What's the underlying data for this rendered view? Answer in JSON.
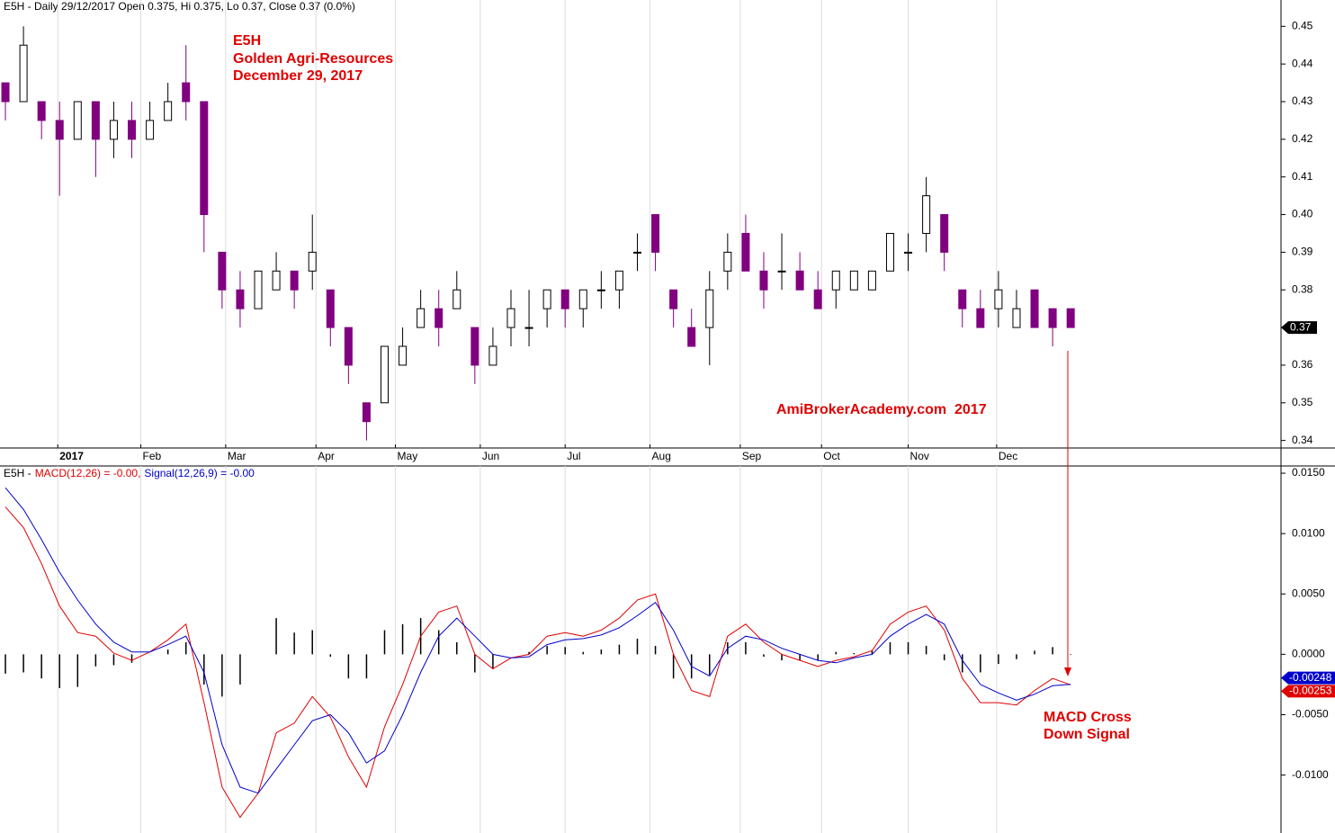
{
  "chart_data": [
    {
      "type": "candlestick",
      "title": "E5H - Daily 29/12/2017 Open 0.375, Hi 0.375, Lo 0.37, Close 0.37 (0.0%)",
      "annotations": [
        "E5H",
        "Golden Agri-Resources",
        "December 29, 2017",
        "AmiBrokerAcademy.com  2017"
      ],
      "open": [
        0.435,
        0.43,
        0.43,
        0.425,
        0.42,
        0.43,
        0.42,
        0.425,
        0.42,
        0.425,
        0.435,
        0.43,
        0.39,
        0.38,
        0.375,
        0.38,
        0.385,
        0.385,
        0.38,
        0.37,
        0.35,
        0.35,
        0.36,
        0.37,
        0.375,
        0.375,
        0.37,
        0.36,
        0.37,
        0.37,
        0.375,
        0.38,
        0.375,
        0.38,
        0.38,
        0.39,
        0.4,
        0.38,
        0.37,
        0.37,
        0.385,
        0.395,
        0.385,
        0.385,
        0.385,
        0.38,
        0.38,
        0.38,
        0.38,
        0.385,
        0.39,
        0.395,
        0.4,
        0.38,
        0.375,
        0.375,
        0.37,
        0.38,
        0.375,
        0.375
      ],
      "high": [
        0.435,
        0.45,
        0.43,
        0.43,
        0.43,
        0.43,
        0.43,
        0.43,
        0.43,
        0.435,
        0.445,
        0.43,
        0.39,
        0.385,
        0.385,
        0.39,
        0.385,
        0.4,
        0.38,
        0.37,
        0.35,
        0.365,
        0.37,
        0.38,
        0.38,
        0.385,
        0.37,
        0.37,
        0.38,
        0.38,
        0.38,
        0.38,
        0.38,
        0.385,
        0.385,
        0.395,
        0.4,
        0.38,
        0.375,
        0.385,
        0.395,
        0.4,
        0.39,
        0.395,
        0.39,
        0.385,
        0.385,
        0.385,
        0.385,
        0.395,
        0.395,
        0.41,
        0.4,
        0.38,
        0.38,
        0.385,
        0.38,
        0.38,
        0.375,
        0.375
      ],
      "low": [
        0.425,
        0.43,
        0.42,
        0.405,
        0.42,
        0.41,
        0.415,
        0.415,
        0.42,
        0.425,
        0.425,
        0.39,
        0.375,
        0.37,
        0.375,
        0.38,
        0.375,
        0.38,
        0.365,
        0.355,
        0.34,
        0.35,
        0.36,
        0.37,
        0.365,
        0.375,
        0.355,
        0.36,
        0.365,
        0.365,
        0.37,
        0.37,
        0.37,
        0.375,
        0.375,
        0.385,
        0.385,
        0.37,
        0.365,
        0.36,
        0.38,
        0.385,
        0.375,
        0.38,
        0.38,
        0.375,
        0.375,
        0.38,
        0.38,
        0.385,
        0.385,
        0.39,
        0.385,
        0.37,
        0.37,
        0.37,
        0.37,
        0.37,
        0.365,
        0.37
      ],
      "close": [
        0.43,
        0.445,
        0.425,
        0.42,
        0.43,
        0.42,
        0.425,
        0.42,
        0.425,
        0.43,
        0.43,
        0.4,
        0.38,
        0.375,
        0.385,
        0.385,
        0.38,
        0.39,
        0.37,
        0.36,
        0.345,
        0.365,
        0.365,
        0.375,
        0.37,
        0.38,
        0.36,
        0.365,
        0.375,
        0.37,
        0.38,
        0.375,
        0.38,
        0.38,
        0.385,
        0.39,
        0.39,
        0.375,
        0.365,
        0.38,
        0.39,
        0.385,
        0.38,
        0.385,
        0.38,
        0.375,
        0.385,
        0.385,
        0.385,
        0.395,
        0.39,
        0.405,
        0.39,
        0.375,
        0.37,
        0.38,
        0.375,
        0.37,
        0.37,
        0.37
      ],
      "up_color": "#000000",
      "down_color": "#800080",
      "last_label": "0.37",
      "xlim": [
        -0.3,
        70.65
      ],
      "xticks": [
        {
          "value": 2.9,
          "label": "2017"
        },
        {
          "value": 7.5,
          "label": "Feb"
        },
        {
          "value": 12.2,
          "label": "Mar"
        },
        {
          "value": 17.2,
          "label": "Apr"
        },
        {
          "value": 21.6,
          "label": "May"
        },
        {
          "value": 26.3,
          "label": "Jun"
        },
        {
          "value": 31.0,
          "label": "Jul"
        },
        {
          "value": 35.7,
          "label": "Aug"
        },
        {
          "value": 40.7,
          "label": "Sep"
        },
        {
          "value": 45.2,
          "label": "Oct"
        },
        {
          "value": 50.0,
          "label": "Nov"
        },
        {
          "value": 54.9,
          "label": "Dec"
        }
      ],
      "ylim": [
        0.338,
        0.457
      ],
      "yticks": [
        0.34,
        0.35,
        0.36,
        0.37,
        0.38,
        0.39,
        {
          "value": 0.4,
          "label": "0.40"
        },
        0.41,
        0.42,
        0.43,
        0.44,
        0.45
      ],
      "grid": true
    },
    {
      "type": "line",
      "title": "E5H -",
      "annotations": [
        "MACD Cross",
        "Down Signal"
      ],
      "series": [
        {
          "name": "MACD(12,26) = -0.00,",
          "color": "#e00000",
          "last_label": "-0.00253",
          "values": [
            0.0122,
            0.0105,
            0.0075,
            0.004,
            0.0018,
            0.0015,
            0.0001,
            -0.0005,
            0.0002,
            0.0012,
            0.0025,
            -0.004,
            -0.011,
            -0.0135,
            -0.0115,
            -0.0065,
            -0.0057,
            -0.0035,
            -0.0052,
            -0.0085,
            -0.011,
            -0.006,
            -0.0025,
            0.0015,
            0.0035,
            0.004,
            0.0,
            -0.0012,
            -0.0003,
            0.0,
            0.0015,
            0.0018,
            0.0015,
            0.002,
            0.003,
            0.0045,
            0.005,
            0.0,
            -0.003,
            -0.0035,
            0.0015,
            0.0025,
            0.001,
            0.0,
            -0.0005,
            -0.001,
            -0.0005,
            -0.0002,
            0.0003,
            0.0025,
            0.0035,
            0.004,
            0.002,
            -0.002,
            -0.004,
            -0.004,
            -0.0042,
            -0.003,
            -0.002,
            -0.00253
          ]
        },
        {
          "name": "Signal(12,26,9) = -0.00",
          "color": "#0000cc",
          "last_label": "-0.00248",
          "values": [
            0.0138,
            0.012,
            0.0095,
            0.0068,
            0.0045,
            0.0025,
            0.001,
            0.0002,
            0.0002,
            0.0008,
            0.0015,
            -0.0015,
            -0.0075,
            -0.011,
            -0.0115,
            -0.0095,
            -0.0075,
            -0.0055,
            -0.005,
            -0.0065,
            -0.009,
            -0.008,
            -0.005,
            -0.0015,
            0.0015,
            0.003,
            0.0015,
            0.0,
            -0.0003,
            -0.0002,
            0.0008,
            0.0012,
            0.0013,
            0.0016,
            0.0022,
            0.0032,
            0.0043,
            0.002,
            -0.001,
            -0.0018,
            0.0005,
            0.0015,
            0.0012,
            0.0005,
            0.0,
            -0.0005,
            -0.0007,
            -0.0003,
            0.0,
            0.0015,
            0.0025,
            0.0033,
            0.0025,
            -0.0005,
            -0.0025,
            -0.0032,
            -0.0038,
            -0.0033,
            -0.0026,
            -0.00248
          ]
        }
      ],
      "histogram": {
        "color": "#000000",
        "values": [
          -0.0016,
          -0.0015,
          -0.002,
          -0.0028,
          -0.0027,
          -0.001,
          -0.0009,
          -0.0007,
          0.0,
          0.0004,
          0.001,
          -0.0025,
          -0.0035,
          -0.0025,
          0.0,
          0.003,
          0.0018,
          0.002,
          -0.0002,
          -0.002,
          -0.002,
          0.002,
          0.0025,
          0.003,
          0.002,
          0.001,
          -0.0015,
          -0.0012,
          0.0,
          0.0002,
          0.0007,
          0.0006,
          0.0002,
          0.0004,
          0.0008,
          0.0013,
          0.0007,
          -0.002,
          -0.002,
          -0.0017,
          0.001,
          0.001,
          -0.0002,
          -0.0005,
          -0.0005,
          -0.0005,
          0.0002,
          0.0001,
          0.0003,
          0.001,
          0.001,
          0.0007,
          -0.0005,
          -0.0015,
          -0.0015,
          -0.0008,
          -0.0004,
          0.0003,
          0.0006,
          -5e-05
        ]
      },
      "ylim": [
        -0.0148,
        0.0156
      ],
      "yticks": [
        {
          "value": -0.01,
          "label": "-0.0100"
        },
        {
          "value": -0.005,
          "label": "-0.0050"
        },
        {
          "value": 0.0,
          "label": "0.0000"
        },
        {
          "value": 0.005,
          "label": "0.0050"
        },
        {
          "value": 0.01,
          "label": "0.0100"
        },
        {
          "value": 0.015,
          "label": "0.0150"
        }
      ]
    }
  ]
}
